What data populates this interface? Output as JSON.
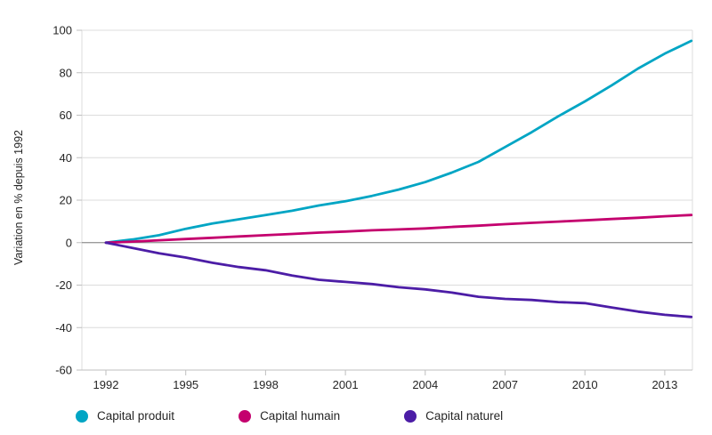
{
  "chart_data": {
    "type": "line",
    "title": "",
    "xlabel": "",
    "ylabel": "Variation en % depuis 1992",
    "x": [
      1992,
      1993,
      1994,
      1995,
      1996,
      1997,
      1998,
      1999,
      2000,
      2001,
      2002,
      2003,
      2004,
      2005,
      2006,
      2007,
      2008,
      2009,
      2010,
      2011,
      2012,
      2013,
      2014
    ],
    "series": [
      {
        "name": "Capital produit",
        "color": "#00a5c4",
        "values": [
          0,
          1.5,
          3.5,
          6.5,
          9,
          11,
          13,
          15,
          17.5,
          19.5,
          22,
          25,
          28.5,
          33,
          38,
          45,
          52,
          59.5,
          66.5,
          74,
          82,
          89,
          95
        ]
      },
      {
        "name": "Capital humain",
        "color": "#c4006e",
        "values": [
          0,
          0.5,
          1.1,
          1.7,
          2.3,
          2.9,
          3.5,
          4.1,
          4.7,
          5.2,
          5.8,
          6.2,
          6.7,
          7.4,
          8,
          8.7,
          9.3,
          9.9,
          10.5,
          11.1,
          11.7,
          12.4,
          13
        ]
      },
      {
        "name": "Capital naturel",
        "color": "#4c1da6",
        "values": [
          0,
          -2.5,
          -5,
          -7,
          -9.5,
          -11.5,
          -13,
          -15.5,
          -17.5,
          -18.5,
          -19.5,
          -21,
          -22,
          -23.5,
          -25.5,
          -26.5,
          -27,
          -28,
          -28.5,
          -30.5,
          -32.5,
          -34,
          -35
        ]
      }
    ],
    "ylim": [
      -60,
      100
    ],
    "y_ticks": [
      100,
      80,
      60,
      40,
      20,
      0,
      -20,
      -40,
      -60
    ],
    "x_ticks": [
      1992,
      1995,
      1998,
      2001,
      2004,
      2007,
      2010,
      2013
    ],
    "grid": "horizontal",
    "zero_line": true,
    "legend_position": "bottom",
    "colors": {
      "grid": "#dcdcdc",
      "axis": "#bfbfbf",
      "zero_line": "#808080",
      "tick_text": "#262626"
    }
  }
}
